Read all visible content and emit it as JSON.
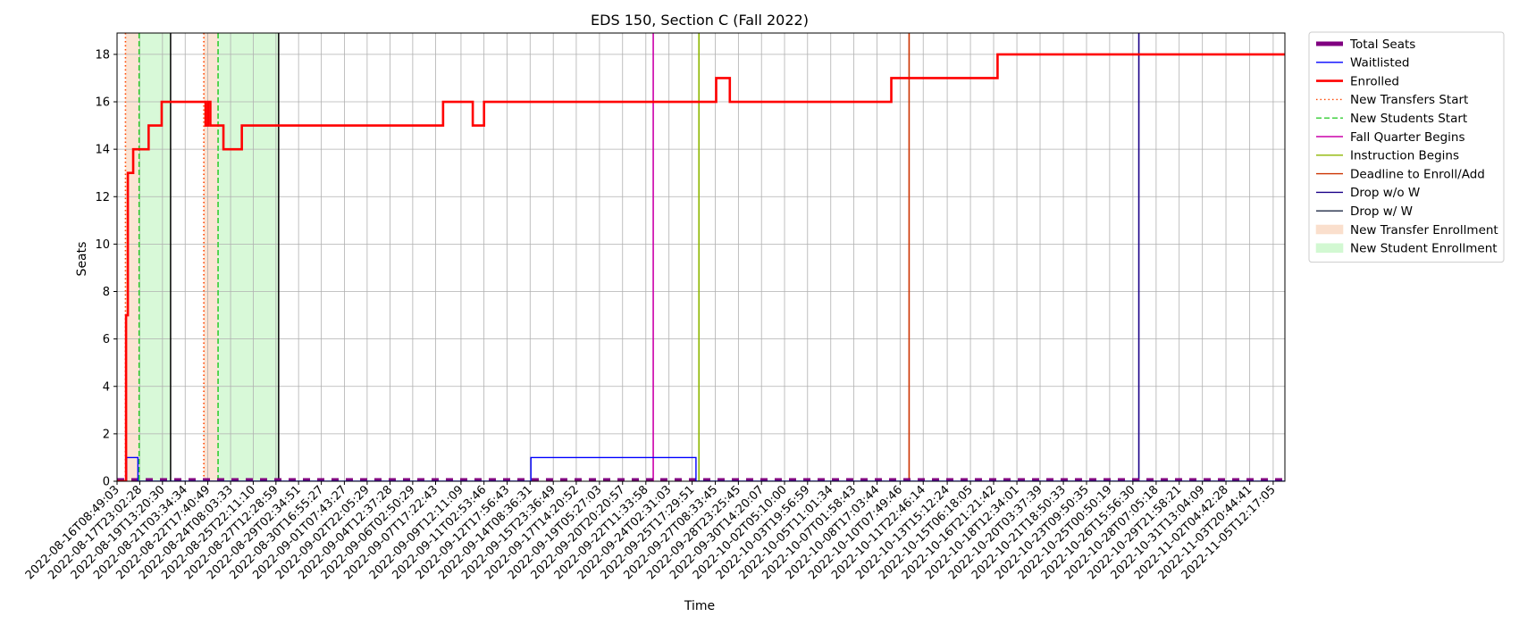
{
  "chart_data": {
    "type": "line",
    "title": "EDS 150, Section C (Fall 2022)",
    "xlabel": "Time",
    "ylabel": "Seats",
    "ylim": [
      0,
      18.9
    ],
    "yticks": [
      0,
      2,
      4,
      6,
      8,
      10,
      12,
      14,
      16,
      18
    ],
    "grid": true,
    "legend_placement": "outside-right-top",
    "x_start": "2022-08-16T08:49:03",
    "x_end": "2022-11-06T08:00:00",
    "x_tick_labels": [
      "2022-08-16T08:49:03",
      "2022-08-17T23:02:28",
      "2022-08-19T13:20:30",
      "2022-08-21T03:34:34",
      "2022-08-22T17:40:49",
      "2022-08-24T08:03:33",
      "2022-08-25T22:11:10",
      "2022-08-27T12:28:59",
      "2022-08-29T02:34:51",
      "2022-08-30T16:55:27",
      "2022-09-01T07:43:27",
      "2022-09-02T22:05:29",
      "2022-09-04T12:37:28",
      "2022-09-06T02:50:29",
      "2022-09-07T17:22:43",
      "2022-09-09T12:11:09",
      "2022-09-11T02:53:46",
      "2022-09-12T17:56:43",
      "2022-09-14T08:36:31",
      "2022-09-15T23:36:49",
      "2022-09-17T14:20:52",
      "2022-09-19T05:27:03",
      "2022-09-20T20:20:57",
      "2022-09-22T11:33:58",
      "2022-09-24T02:31:03",
      "2022-09-25T17:29:51",
      "2022-09-27T08:33:45",
      "2022-09-28T23:25:45",
      "2022-09-30T14:20:07",
      "2022-10-02T05:10:00",
      "2022-10-03T19:56:59",
      "2022-10-05T11:01:34",
      "2022-10-07T01:58:43",
      "2022-10-08T17:03:44",
      "2022-10-10T07:49:46",
      "2022-10-11T22:46:14",
      "2022-10-13T15:12:24",
      "2022-10-15T06:18:05",
      "2022-10-16T21:21:42",
      "2022-10-18T12:34:01",
      "2022-10-20T03:37:39",
      "2022-10-21T18:50:33",
      "2022-10-23T09:50:35",
      "2022-10-25T00:50:19",
      "2022-10-26T15:56:30",
      "2022-10-28T07:05:18",
      "2022-10-29T21:58:21",
      "2022-10-31T13:04:09",
      "2022-11-02T04:42:28",
      "2022-11-03T20:44:41",
      "2022-11-05T12:17:05"
    ],
    "series": [
      {
        "name": "Total Seats",
        "color": "#800080",
        "style": "thick-dashed",
        "step": true,
        "points": [
          [
            "2022-08-16T08:49:03",
            0
          ],
          [
            "2022-11-06T08:00:00",
            0
          ]
        ]
      },
      {
        "name": "Waitlisted",
        "color": "#0000ff",
        "style": "solid",
        "step": true,
        "points": [
          [
            "2022-08-16T08:49:03",
            0
          ],
          [
            "2022-08-17T01:00:00",
            1
          ],
          [
            "2022-08-17T20:00:00",
            0
          ],
          [
            "2022-09-14T10:00:00",
            1
          ],
          [
            "2022-09-26T00:00:00",
            0
          ],
          [
            "2022-11-06T08:00:00",
            0
          ]
        ]
      },
      {
        "name": "Enrolled",
        "color": "#ff0000",
        "style": "thick-solid",
        "step": true,
        "points": [
          [
            "2022-08-16T08:49:03",
            0
          ],
          [
            "2022-08-17T00:00:00",
            7
          ],
          [
            "2022-08-17T03:00:00",
            13
          ],
          [
            "2022-08-17T12:00:00",
            14
          ],
          [
            "2022-08-18T14:00:00",
            15
          ],
          [
            "2022-08-19T12:00:00",
            16
          ],
          [
            "2022-08-19T18:00:00",
            16
          ],
          [
            "2022-08-22T14:00:00",
            15
          ],
          [
            "2022-08-22T18:00:00",
            16
          ],
          [
            "2022-08-22T22:00:00",
            15
          ],
          [
            "2022-08-23T20:00:00",
            14
          ],
          [
            "2022-08-25T03:00:00",
            15
          ],
          [
            "2022-09-08T06:00:00",
            16
          ],
          [
            "2022-09-10T08:00:00",
            15
          ],
          [
            "2022-09-11T03:00:00",
            16
          ],
          [
            "2022-09-27T10:00:00",
            17
          ],
          [
            "2022-09-28T09:00:00",
            16
          ],
          [
            "2022-10-09T17:00:00",
            17
          ],
          [
            "2022-10-17T04:00:00",
            18
          ],
          [
            "2022-11-06T08:00:00",
            18
          ]
        ]
      }
    ],
    "vertical_markers": [
      {
        "name": "New Transfers Start",
        "color": "#ff4500",
        "style": "dotted",
        "x": [
          "2022-08-16T23:00:00",
          "2022-08-22T11:00:00"
        ]
      },
      {
        "name": "New Students Start",
        "color": "#32cd32",
        "style": "dashed",
        "x": [
          "2022-08-17T22:00:00",
          "2022-08-23T11:00:00"
        ]
      },
      {
        "name": "Fall Quarter Begins",
        "color": "#cc00aa",
        "style": "solid",
        "x": [
          "2022-09-23T00:00:00"
        ]
      },
      {
        "name": "Instruction Begins",
        "color": "#8db600",
        "style": "solid",
        "x": [
          "2022-09-26T05:00:00"
        ]
      },
      {
        "name": "Deadline to Enroll/Add",
        "color": "#cc3300",
        "style": "solid",
        "x": [
          "2022-10-10T23:00:00"
        ]
      },
      {
        "name": "Drop w/o W",
        "color": "#1a0088",
        "style": "solid",
        "x": [
          "2022-10-27T02:00:00"
        ]
      },
      {
        "name": "Drop w/ W",
        "color": "#1e2a44",
        "style": "solid",
        "x": [
          "2022-11-11T00:00:00"
        ]
      }
    ],
    "black_lines": [
      "2022-08-20T03:00:00",
      "2022-08-27T17:00:00"
    ],
    "shaded_regions": [
      {
        "name": "New Transfer Enrollment",
        "color": "#f4b183",
        "x": [
          [
            "2022-08-16T23:00:00",
            "2022-08-17T22:00:00"
          ],
          [
            "2022-08-22T11:00:00",
            "2022-08-23T11:00:00"
          ]
        ]
      },
      {
        "name": "New Student Enrollment",
        "color": "#90ee90",
        "x": [
          [
            "2022-08-17T22:00:00",
            "2022-08-20T03:00:00"
          ],
          [
            "2022-08-23T11:00:00",
            "2022-08-27T17:00:00"
          ]
        ]
      }
    ],
    "legend": [
      {
        "label": "Total Seats",
        "color": "#800080",
        "kind": "thick-line"
      },
      {
        "label": "Waitlisted",
        "color": "#0000ff",
        "kind": "line"
      },
      {
        "label": "Enrolled",
        "color": "#ff0000",
        "kind": "bold-line"
      },
      {
        "label": "New Transfers Start",
        "color": "#ff4500",
        "kind": "dotted"
      },
      {
        "label": "New Students Start",
        "color": "#32cd32",
        "kind": "dashed"
      },
      {
        "label": "Fall Quarter Begins",
        "color": "#cc00aa",
        "kind": "line"
      },
      {
        "label": "Instruction Begins",
        "color": "#8db600",
        "kind": "line"
      },
      {
        "label": "Deadline to Enroll/Add",
        "color": "#cc3300",
        "kind": "line"
      },
      {
        "label": "Drop w/o W",
        "color": "#1a0088",
        "kind": "line"
      },
      {
        "label": "Drop w/ W",
        "color": "#1e2a44",
        "kind": "line"
      },
      {
        "label": "New Transfer Enrollment",
        "color": "#f4b183",
        "kind": "patch"
      },
      {
        "label": "New Student Enrollment",
        "color": "#90ee90",
        "kind": "patch"
      }
    ]
  }
}
